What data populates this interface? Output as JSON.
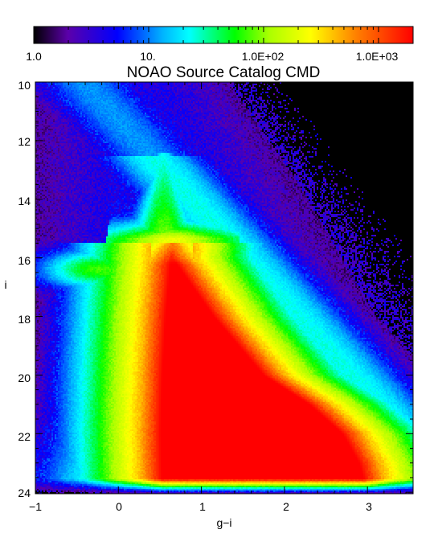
{
  "chart_data": {
    "type": "heatmap",
    "title": "NOAO Source Catalog CMD",
    "xlabel": "g−i",
    "ylabel": "i",
    "xlim": [
      -1,
      3.55
    ],
    "ylim": [
      24.05,
      10
    ],
    "y_inverted": true,
    "grid": false,
    "x_ticks": [
      -1,
      0,
      1,
      2,
      3
    ],
    "x_tick_labels": [
      "−1",
      "0",
      "1",
      "2",
      "3"
    ],
    "y_ticks": [
      10,
      12,
      14,
      16,
      18,
      20,
      22,
      24
    ],
    "y_tick_labels": [
      "10",
      "12",
      "14",
      "16",
      "18",
      "20",
      "22",
      "24"
    ],
    "colorbar": {
      "placement": "top",
      "scale": "log",
      "range": [
        1,
        2000
      ],
      "ticks": [
        1,
        10,
        100,
        1000
      ],
      "tick_labels": [
        "1.0",
        "10.",
        "1.0E+02",
        "1.0E+03"
      ],
      "colormap": [
        "#000000",
        "#5b00aa",
        "#0000ff",
        "#00b4ff",
        "#00ffff",
        "#00ff00",
        "#aaff00",
        "#ffff00",
        "#ff8000",
        "#ff0000"
      ]
    },
    "density_features": [
      {
        "description": "main sequence ridge",
        "g_minus_i": [
          0.6,
          0.65,
          0.8,
          1.0
        ],
        "i": [
          15.2,
          16.2,
          18.0,
          21.0
        ]
      },
      {
        "description": "densest region",
        "g_minus_i": [
          0.5,
          3.1
        ],
        "i": [
          20.5,
          23.8
        ]
      },
      {
        "description": "peak of bright plume",
        "g_minus_i": 0.55,
        "i": 13.0
      }
    ]
  }
}
